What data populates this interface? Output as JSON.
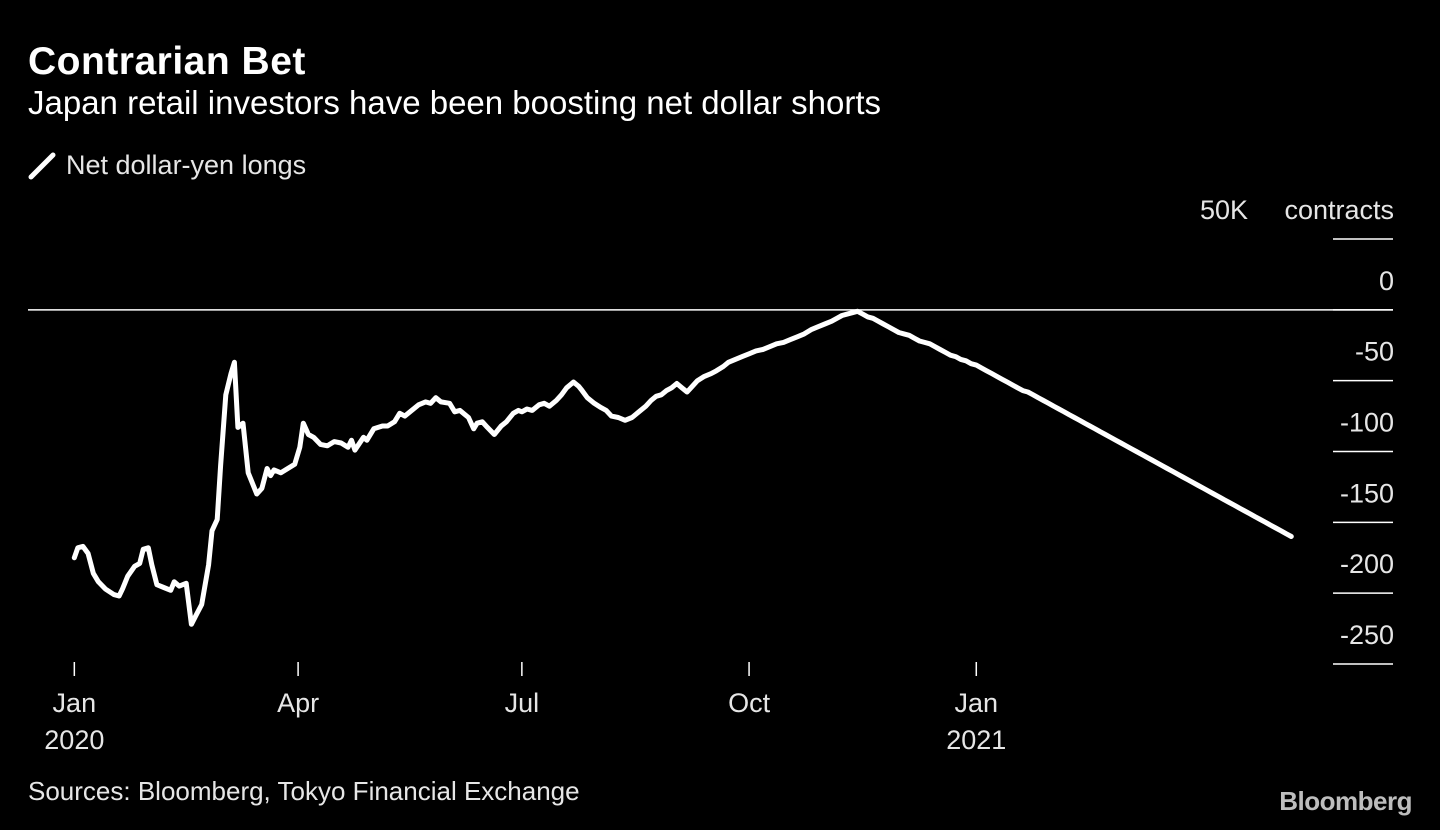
{
  "header": {
    "title": "Contrarian Bet",
    "subtitle": "Japan retail investors have been boosting net dollar shorts"
  },
  "legend": {
    "label": "Net dollar-yen longs"
  },
  "footer": {
    "source": "Sources: Bloomberg, Tokyo Financial Exchange",
    "logo": "Bloomberg"
  },
  "colors": {
    "background": "#000000",
    "line": "#ffffff",
    "text": "#e6e6e6"
  },
  "chart_data": {
    "type": "line",
    "title": "Contrarian Bet",
    "subtitle": "Japan retail investors have been boosting net dollar shorts",
    "ylabel": "50K contracts",
    "y_unit_label": "50K",
    "y_unit_text": "contracts",
    "ylim": [
      -250,
      50
    ],
    "y_ticks": [
      "0",
      "-50",
      "-100",
      "-150",
      "-200",
      "-250"
    ],
    "y_tick_values": [
      0,
      -50,
      -100,
      -150,
      -200,
      -250
    ],
    "y_top_tick_value": 50,
    "x_ticks": [
      {
        "t": 0,
        "label": "Jan",
        "sublabel": "2020"
      },
      {
        "t": 13,
        "label": "Apr",
        "sublabel": ""
      },
      {
        "t": 26,
        "label": "Jul",
        "sublabel": ""
      },
      {
        "t": 39.2,
        "label": "Oct",
        "sublabel": ""
      },
      {
        "t": 52.4,
        "label": "Jan",
        "sublabel": "2021"
      }
    ],
    "x_unit": "weeks since Jan 1, 2020",
    "legend_position": "top-left",
    "series": [
      {
        "name": "Net dollar-yen longs",
        "points": [
          [
            0.0,
            -175
          ],
          [
            0.2,
            -168
          ],
          [
            0.5,
            -167
          ],
          [
            0.8,
            -172
          ],
          [
            1.1,
            -186
          ],
          [
            1.4,
            -192
          ],
          [
            1.8,
            -197
          ],
          [
            2.3,
            -201
          ],
          [
            2.6,
            -202
          ],
          [
            2.8,
            -197
          ],
          [
            3.1,
            -188
          ],
          [
            3.5,
            -181
          ],
          [
            3.8,
            -179
          ],
          [
            4.0,
            -169
          ],
          [
            4.3,
            -168
          ],
          [
            4.5,
            -180
          ],
          [
            4.8,
            -194
          ],
          [
            5.2,
            -196
          ],
          [
            5.6,
            -198
          ],
          [
            5.8,
            -192
          ],
          [
            6.1,
            -195
          ],
          [
            6.5,
            -193
          ],
          [
            6.8,
            -222
          ],
          [
            7.1,
            -215
          ],
          [
            7.4,
            -208
          ],
          [
            7.8,
            -180
          ],
          [
            8.0,
            -156
          ],
          [
            8.3,
            -148
          ],
          [
            8.5,
            -110
          ],
          [
            8.8,
            -60
          ],
          [
            9.1,
            -45
          ],
          [
            9.3,
            -37
          ],
          [
            9.5,
            -83
          ],
          [
            9.8,
            -80
          ],
          [
            10.1,
            -115
          ],
          [
            10.6,
            -130
          ],
          [
            10.9,
            -126
          ],
          [
            11.2,
            -112
          ],
          [
            11.4,
            -117
          ],
          [
            11.6,
            -113
          ],
          [
            12.0,
            -115
          ],
          [
            12.4,
            -112
          ],
          [
            12.8,
            -109
          ],
          [
            13.1,
            -97
          ],
          [
            13.3,
            -80
          ],
          [
            13.6,
            -88
          ],
          [
            13.9,
            -90
          ],
          [
            14.3,
            -95
          ],
          [
            14.7,
            -96
          ],
          [
            15.1,
            -93
          ],
          [
            15.5,
            -94
          ],
          [
            15.9,
            -97
          ],
          [
            16.1,
            -92
          ],
          [
            16.3,
            -99
          ],
          [
            16.8,
            -90
          ],
          [
            17.0,
            -92
          ],
          [
            17.4,
            -84
          ],
          [
            17.9,
            -82
          ],
          [
            18.2,
            -82
          ],
          [
            18.6,
            -79
          ],
          [
            18.9,
            -73
          ],
          [
            19.2,
            -75
          ],
          [
            19.6,
            -71
          ],
          [
            20.0,
            -67
          ],
          [
            20.4,
            -65
          ],
          [
            20.7,
            -66
          ],
          [
            21.0,
            -62
          ],
          [
            21.3,
            -65
          ],
          [
            21.8,
            -66
          ],
          [
            22.1,
            -72
          ],
          [
            22.4,
            -71
          ],
          [
            22.9,
            -76
          ],
          [
            23.2,
            -84
          ],
          [
            23.4,
            -80
          ],
          [
            23.7,
            -79
          ],
          [
            24.0,
            -83
          ],
          [
            24.4,
            -88
          ],
          [
            24.8,
            -82
          ],
          [
            25.1,
            -79
          ],
          [
            25.5,
            -73
          ],
          [
            25.8,
            -71
          ],
          [
            26.0,
            -72
          ],
          [
            26.3,
            -70
          ],
          [
            26.6,
            -71
          ],
          [
            27.0,
            -67
          ],
          [
            27.3,
            -66
          ],
          [
            27.6,
            -68
          ],
          [
            28.0,
            -64
          ],
          [
            28.3,
            -60
          ],
          [
            28.6,
            -55
          ],
          [
            29.0,
            -51
          ],
          [
            29.3,
            -54
          ],
          [
            29.5,
            -57
          ],
          [
            29.8,
            -62
          ],
          [
            30.2,
            -66
          ],
          [
            30.6,
            -69
          ],
          [
            30.9,
            -71
          ],
          [
            31.2,
            -75
          ],
          [
            31.6,
            -76
          ],
          [
            32.0,
            -78
          ],
          [
            32.4,
            -76
          ],
          [
            32.8,
            -72
          ],
          [
            33.2,
            -68
          ],
          [
            33.5,
            -64
          ],
          [
            33.8,
            -61
          ],
          [
            34.1,
            -60
          ],
          [
            34.4,
            -57
          ],
          [
            34.7,
            -55
          ],
          [
            35.0,
            -52
          ],
          [
            35.3,
            -55
          ],
          [
            35.6,
            -58
          ],
          [
            35.9,
            -54
          ],
          [
            36.2,
            -50
          ],
          [
            36.6,
            -47
          ],
          [
            37.0,
            -45
          ],
          [
            37.3,
            -43
          ],
          [
            37.7,
            -40
          ],
          [
            38.0,
            -37
          ],
          [
            38.4,
            -35
          ],
          [
            38.8,
            -33
          ],
          [
            39.2,
            -31
          ],
          [
            39.6,
            -29
          ],
          [
            40.0,
            -28
          ],
          [
            40.4,
            -26
          ],
          [
            40.8,
            -24
          ],
          [
            41.2,
            -23
          ],
          [
            41.6,
            -21
          ],
          [
            42.0,
            -19
          ],
          [
            42.4,
            -17
          ],
          [
            42.8,
            -14
          ],
          [
            43.2,
            -12
          ],
          [
            43.6,
            -10
          ],
          [
            44.0,
            -8
          ],
          [
            44.3,
            -6
          ],
          [
            44.6,
            -4
          ],
          [
            44.9,
            -3
          ],
          [
            45.2,
            -2
          ],
          [
            45.5,
            -1
          ],
          [
            45.8,
            -3
          ],
          [
            46.1,
            -5
          ],
          [
            46.4,
            -6
          ],
          [
            46.7,
            -8
          ],
          [
            47.0,
            -10
          ],
          [
            47.3,
            -12
          ],
          [
            47.6,
            -14
          ],
          [
            47.9,
            -16
          ],
          [
            48.2,
            -17
          ],
          [
            48.5,
            -18
          ],
          [
            48.8,
            -20
          ],
          [
            49.1,
            -22
          ],
          [
            49.4,
            -23
          ],
          [
            49.7,
            -24
          ],
          [
            50.0,
            -26
          ],
          [
            50.3,
            -28
          ],
          [
            50.6,
            -30
          ],
          [
            50.9,
            -32
          ],
          [
            51.2,
            -33
          ],
          [
            51.5,
            -35
          ],
          [
            51.8,
            -36
          ],
          [
            52.1,
            -38
          ],
          [
            52.4,
            -39
          ],
          [
            52.7,
            -41
          ],
          [
            53.0,
            -43
          ],
          [
            53.3,
            -45
          ],
          [
            53.6,
            -47
          ],
          [
            53.9,
            -49
          ],
          [
            54.2,
            -51
          ],
          [
            54.5,
            -53
          ],
          [
            54.8,
            -55
          ],
          [
            55.1,
            -57
          ],
          [
            55.4,
            -58
          ],
          [
            55.7,
            -60
          ],
          [
            56.0,
            -62
          ],
          [
            56.3,
            -64
          ],
          [
            56.6,
            -66
          ],
          [
            56.9,
            -68
          ],
          [
            57.2,
            -70
          ],
          [
            57.5,
            -72
          ],
          [
            57.8,
            -74
          ],
          [
            58.1,
            -76
          ],
          [
            58.4,
            -78
          ],
          [
            58.7,
            -80
          ],
          [
            59.0,
            -82
          ],
          [
            59.3,
            -84
          ],
          [
            59.6,
            -86
          ],
          [
            59.9,
            -88
          ],
          [
            60.2,
            -90
          ],
          [
            60.5,
            -92
          ],
          [
            60.8,
            -94
          ],
          [
            61.1,
            -96
          ],
          [
            61.4,
            -98
          ],
          [
            61.7,
            -100
          ],
          [
            62.0,
            -102
          ],
          [
            62.3,
            -104
          ],
          [
            62.6,
            -106
          ],
          [
            62.9,
            -108
          ],
          [
            63.2,
            -110
          ],
          [
            63.5,
            -112
          ],
          [
            63.8,
            -114
          ],
          [
            64.1,
            -116
          ],
          [
            64.4,
            -118
          ],
          [
            64.7,
            -120
          ],
          [
            65.0,
            -122
          ],
          [
            65.3,
            -124
          ],
          [
            65.6,
            -126
          ],
          [
            65.9,
            -128
          ],
          [
            66.2,
            -130
          ],
          [
            66.5,
            -132
          ],
          [
            66.8,
            -134
          ],
          [
            67.1,
            -136
          ],
          [
            67.4,
            -138
          ],
          [
            67.7,
            -140
          ],
          [
            68.0,
            -142
          ],
          [
            68.3,
            -144
          ],
          [
            68.6,
            -146
          ],
          [
            68.9,
            -148
          ],
          [
            69.2,
            -150
          ],
          [
            69.5,
            -152
          ],
          [
            69.8,
            -154
          ],
          [
            70.1,
            -156
          ],
          [
            70.4,
            -158
          ],
          [
            70.7,
            -160
          ]
        ]
      }
    ]
  }
}
